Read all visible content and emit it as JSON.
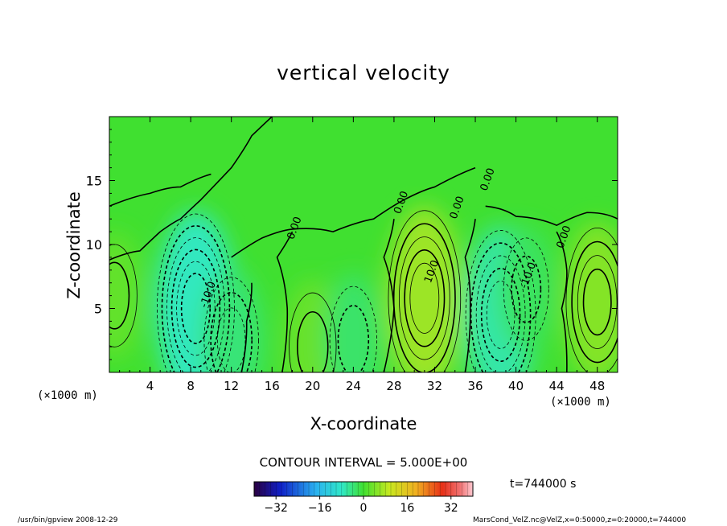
{
  "chart_data": {
    "type": "heatmap",
    "title": "vertical velocity",
    "xlabel": "X-coordinate",
    "ylabel": "Z-coordinate",
    "x_unit": "(×1000 m)",
    "y_unit": "(×1000 m)",
    "xlim": [
      0,
      50
    ],
    "ylim": [
      0,
      20
    ],
    "x_ticks": [
      "4",
      "8",
      "12",
      "16",
      "20",
      "24",
      "28",
      "32",
      "36",
      "40",
      "44",
      "48"
    ],
    "y_ticks": [
      "5",
      "10",
      "15"
    ],
    "contour_labels": [
      "0.00",
      "0.00",
      "0.00",
      "0.00",
      "0.00",
      "-10.0",
      "-10.0",
      "10.0"
    ],
    "contour_interval": "CONTOUR INTERVAL = 5.000E+00",
    "colorbar": {
      "range": [
        -40,
        40
      ],
      "ticks": [
        "−32",
        "−16",
        "0",
        "16",
        "32"
      ],
      "colormap": "rainbow"
    },
    "time_label": "t=744000 s",
    "features": [
      {
        "x": 0.5,
        "z": 6,
        "value": 10
      },
      {
        "x": 8.5,
        "z": 5,
        "value": -30
      },
      {
        "x": 12,
        "z": 2.5,
        "value": -15
      },
      {
        "x": 20,
        "z": 2,
        "value": 12
      },
      {
        "x": 24,
        "z": 2.5,
        "value": -12
      },
      {
        "x": 31,
        "z": 5.8,
        "value": 27
      },
      {
        "x": 38.5,
        "z": 4.5,
        "value": -25
      },
      {
        "x": 41,
        "z": 6.5,
        "value": -10
      },
      {
        "x": 48,
        "z": 5.5,
        "value": 20
      }
    ]
  },
  "footer": {
    "left": "/usr/bin/gpview   2008-12-29",
    "right": "MarsCond_VelZ.nc@VelZ,x=0:50000,z=0:20000,t=744000"
  }
}
